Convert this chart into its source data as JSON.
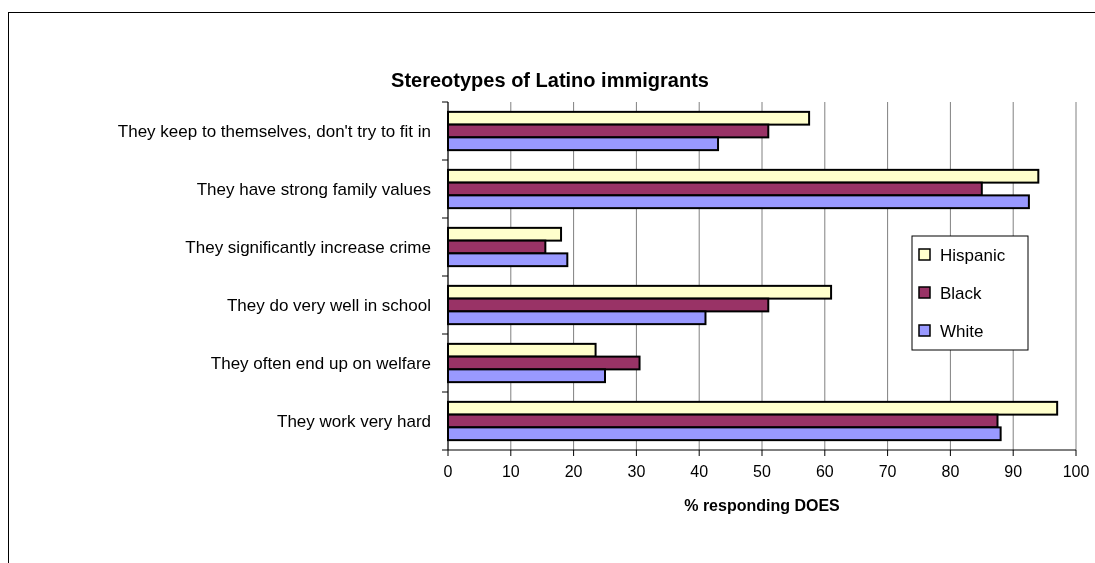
{
  "chart_data": {
    "type": "bar",
    "orientation": "horizontal",
    "title": "Stereotypes of Latino immigrants",
    "xlabel": "% responding DOES",
    "categories": [
      "They keep to themselves, don't try to fit in",
      "They have strong family values",
      "They significantly increase crime",
      "They do very well in school",
      "They often end up on welfare",
      "They work very hard"
    ],
    "series": [
      {
        "name": "Hispanic",
        "color": "#ffffcc",
        "values": [
          57.5,
          94,
          18,
          61,
          23.5,
          97
        ]
      },
      {
        "name": "Black",
        "color": "#993366",
        "values": [
          51,
          85,
          15.5,
          51,
          30.5,
          87.5
        ]
      },
      {
        "name": "White",
        "color": "#9999ff",
        "values": [
          43,
          92.5,
          19,
          41,
          25,
          88
        ]
      }
    ],
    "xlim": [
      0,
      100
    ],
    "xticks": [
      0,
      10,
      20,
      30,
      40,
      50,
      60,
      70,
      80,
      90,
      100
    ],
    "grid": "x",
    "legend": "right"
  }
}
